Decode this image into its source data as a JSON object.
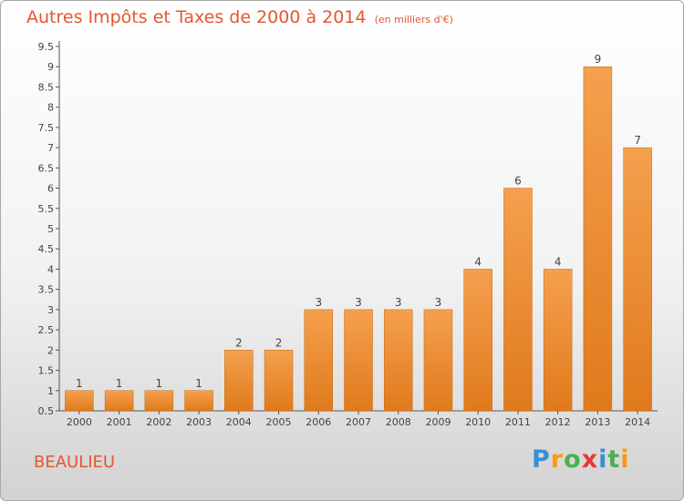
{
  "chart_data": {
    "type": "bar",
    "title": "Autres Impôts et Taxes de 2000 à 2014",
    "unit": "(en milliers d'€)",
    "categories": [
      "2000",
      "2001",
      "2002",
      "2003",
      "2004",
      "2005",
      "2006",
      "2007",
      "2008",
      "2009",
      "2010",
      "2011",
      "2012",
      "2013",
      "2014"
    ],
    "values": [
      1,
      1,
      1,
      1,
      2,
      2,
      3,
      3,
      3,
      3,
      4,
      6,
      4,
      9,
      7
    ],
    "ylim": [
      0.5,
      9.5
    ],
    "yticks": [
      "9.5",
      "9",
      "8.5",
      "8",
      "7.5",
      "7",
      "6.5",
      "6",
      "5.5",
      "5",
      "4.5",
      "4",
      "3.5",
      "3",
      "2.5",
      "2",
      "1.5",
      "1",
      "0.5"
    ],
    "bar_color": "#ee8a30",
    "grid": false
  },
  "footer": {
    "city": "BEAULIEU",
    "logo_letters": [
      "P",
      "r",
      "o",
      "x",
      "i",
      "t",
      "i"
    ],
    "logo_colors": [
      "#3a8fd6",
      "#f39c12",
      "#4caf50",
      "#e53935",
      "#3a8fd6",
      "#4caf50",
      "#f39c12"
    ]
  }
}
